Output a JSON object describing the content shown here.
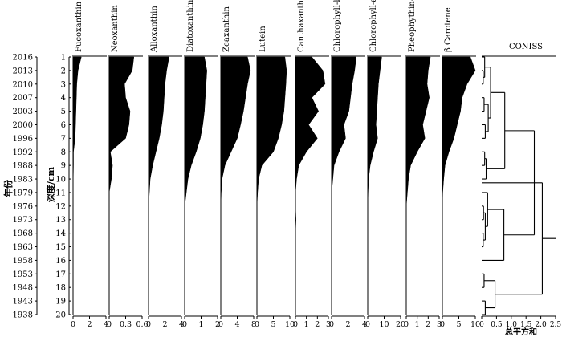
{
  "chart_data": {
    "type": "area",
    "orientation": "vertical-profile",
    "ylabel_depth": "深度/cm",
    "ylabel_year": "年份",
    "depth": [
      1,
      2,
      3,
      4,
      5,
      6,
      7,
      8,
      9,
      10,
      11,
      12,
      13,
      14,
      15,
      16,
      17,
      18,
      19,
      20
    ],
    "years": [
      "2016",
      "2013",
      "2010",
      "2007",
      "2003",
      "2000",
      "1996",
      "1992",
      "1988",
      "1983",
      "1979",
      "1976",
      "1973",
      "1968",
      "1963",
      "1958",
      "1953",
      "1948",
      "1943",
      "1938"
    ],
    "series": [
      {
        "name": "Fucoxanthin",
        "ticks": [
          "0",
          "2",
          "4"
        ],
        "xlim": [
          0,
          4
        ],
        "values": [
          1.0,
          0.6,
          0.45,
          0.4,
          0.35,
          0.3,
          0.25,
          0.05,
          0.05,
          0.02,
          0,
          0,
          0,
          0,
          0,
          0,
          0,
          0,
          0,
          0
        ]
      },
      {
        "name": "Neoxanthin",
        "ticks": [
          "0",
          "0.3",
          "0.6"
        ],
        "xlim": [
          0,
          0.6
        ],
        "values": [
          0.45,
          0.42,
          0.28,
          0.3,
          0.38,
          0.36,
          0.3,
          0.02,
          0.06,
          0.04,
          0,
          0,
          0,
          0,
          0,
          0,
          0,
          0,
          0,
          0
        ]
      },
      {
        "name": "Alloxanthin",
        "ticks": [
          "0",
          "2",
          "4"
        ],
        "xlim": [
          0,
          4
        ],
        "values": [
          2.5,
          2.2,
          2.0,
          1.9,
          1.8,
          1.6,
          1.3,
          0.9,
          0.5,
          0.2,
          0.1,
          0,
          0,
          0,
          0,
          0,
          0,
          0,
          0,
          0
        ]
      },
      {
        "name": "Diatoxanthin",
        "ticks": [
          "0",
          "1",
          "2"
        ],
        "xlim": [
          0,
          2
        ],
        "values": [
          1.2,
          1.35,
          1.3,
          1.25,
          1.2,
          1.1,
          0.95,
          0.7,
          0.4,
          0.2,
          0.1,
          0,
          0,
          0,
          0,
          0,
          0,
          0,
          0,
          0
        ]
      },
      {
        "name": "Zeaxanthin",
        "ticks": [
          "0",
          "4",
          "8"
        ],
        "xlim": [
          0,
          8
        ],
        "values": [
          6.5,
          7.2,
          6.5,
          6.0,
          5.5,
          4.8,
          4.0,
          2.5,
          1.0,
          0.3,
          0.1,
          0,
          0,
          0,
          0,
          0,
          0,
          0,
          0,
          0
        ]
      },
      {
        "name": "Lutein",
        "ticks": [
          "0",
          "5",
          "10"
        ],
        "xlim": [
          0,
          10
        ],
        "values": [
          8.5,
          9.0,
          8.8,
          8.5,
          8.2,
          7.5,
          6.5,
          5.0,
          1.5,
          0.5,
          0.2,
          0,
          0,
          0,
          0,
          0,
          0,
          0,
          0,
          0
        ]
      },
      {
        "name": "Canthaxanthin",
        "ticks": [
          "0",
          "1",
          "2",
          "3"
        ],
        "xlim": [
          0,
          3
        ],
        "values": [
          1.5,
          2.5,
          2.7,
          1.5,
          2.1,
          1.2,
          2.0,
          1.0,
          0.3,
          0.1,
          0,
          0,
          0.05,
          0,
          0,
          0,
          0,
          0,
          0,
          0
        ]
      },
      {
        "name": "Chlorophyll-b",
        "ticks": [
          "0",
          "2",
          "4"
        ],
        "xlim": [
          0,
          4
        ],
        "values": [
          3.0,
          2.8,
          2.5,
          2.3,
          2.1,
          1.5,
          1.7,
          0.9,
          0.3,
          0.15,
          0,
          0,
          0,
          0,
          0,
          0,
          0,
          0,
          0,
          0
        ]
      },
      {
        "name": "Chlorophyll-a",
        "ticks": [
          "0",
          "10",
          "20"
        ],
        "xlim": [
          0,
          20
        ],
        "values": [
          8.5,
          7.5,
          6.5,
          6.0,
          5.5,
          5.0,
          6.0,
          3.5,
          1.5,
          0.5,
          0.2,
          0,
          0,
          0,
          0,
          0,
          0,
          0,
          0,
          0
        ]
      },
      {
        "name": "Pheophythin-a",
        "ticks": [
          "0",
          "1",
          "2",
          "3"
        ],
        "xlim": [
          0,
          3
        ],
        "values": [
          2.2,
          2.0,
          1.9,
          2.1,
          1.8,
          1.5,
          1.7,
          1.0,
          0.4,
          0.2,
          0.1,
          0,
          0,
          0,
          0,
          0,
          0,
          0,
          0,
          0
        ]
      },
      {
        "name": "β Carotene",
        "ticks": [
          "0",
          "5",
          "10"
        ],
        "xlim": [
          0,
          10
        ],
        "values": [
          8.5,
          10.0,
          7.5,
          6.0,
          5.5,
          4.5,
          3.5,
          2.0,
          0.8,
          0.4,
          0.1,
          0,
          0,
          0,
          0,
          0,
          0,
          0,
          0,
          0
        ]
      }
    ],
    "coniss": {
      "title": "CONISS",
      "xlabel": "总平方和",
      "ticks": [
        "0",
        "0.5",
        "1.0",
        "1.5",
        "2.0",
        "2.5"
      ],
      "xlim": [
        0,
        2.5
      ],
      "merges": [
        {
          "a": 2,
          "b": 3,
          "h": 0.05
        },
        {
          "a": 1,
          "b": 2.5,
          "h": 0.1
        },
        {
          "a": 4,
          "b": 5,
          "h": 0.08
        },
        {
          "a": 6,
          "b": 7,
          "h": 0.12
        },
        {
          "a": 4.5,
          "b": 6.5,
          "h": 0.22
        },
        {
          "a": 1.75,
          "b": 5.5,
          "h": 0.3
        },
        {
          "a": 8,
          "b": 9,
          "h": 0.1
        },
        {
          "a": 8.5,
          "b": 10,
          "h": 0.15
        },
        {
          "a": 3.625,
          "b": 9.25,
          "h": 0.78
        },
        {
          "a": 12,
          "b": 13,
          "h": 0.06
        },
        {
          "a": 14,
          "b": 15,
          "h": 0.05
        },
        {
          "a": 12.5,
          "b": 14.5,
          "h": 0.12
        },
        {
          "a": 11,
          "b": 13.5,
          "h": 0.2
        },
        {
          "a": 12.25,
          "b": 16,
          "h": 0.75
        },
        {
          "a": 6.4375,
          "b": 14.125,
          "h": 1.78
        },
        {
          "a": 17,
          "b": 18,
          "h": 0.08
        },
        {
          "a": 19,
          "b": 20,
          "h": 0.12
        },
        {
          "a": 17.5,
          "b": 19.5,
          "h": 0.45
        },
        {
          "a": 10.28,
          "b": 18.5,
          "h": 2.05
        },
        {
          "a": 14.39,
          "b": 14.39,
          "h": 2.5
        }
      ]
    }
  }
}
